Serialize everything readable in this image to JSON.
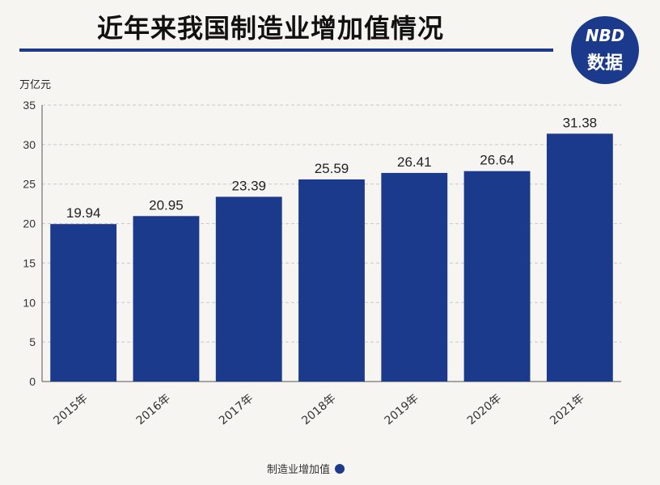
{
  "header": {
    "title": "近年来我国制造业增加值情况",
    "logo_top": "NBD",
    "logo_bottom": "数据"
  },
  "colors": {
    "bar": "#1b3a8c",
    "grid": "#c9c9c9",
    "axis": "#555555"
  },
  "chart_data": {
    "type": "bar",
    "unit_label": "万亿元",
    "categories": [
      "2015年",
      "2016年",
      "2017年",
      "2018年",
      "2019年",
      "2020年",
      "2021年"
    ],
    "series": [
      {
        "name": "制造业增加值",
        "values": [
          19.94,
          20.95,
          23.39,
          25.59,
          26.41,
          26.64,
          31.38
        ]
      }
    ],
    "ylim": [
      0,
      35
    ],
    "yticks": [
      0,
      5,
      10,
      15,
      20,
      25,
      30,
      35
    ],
    "grid": true,
    "legend_position": "bottom-center"
  }
}
